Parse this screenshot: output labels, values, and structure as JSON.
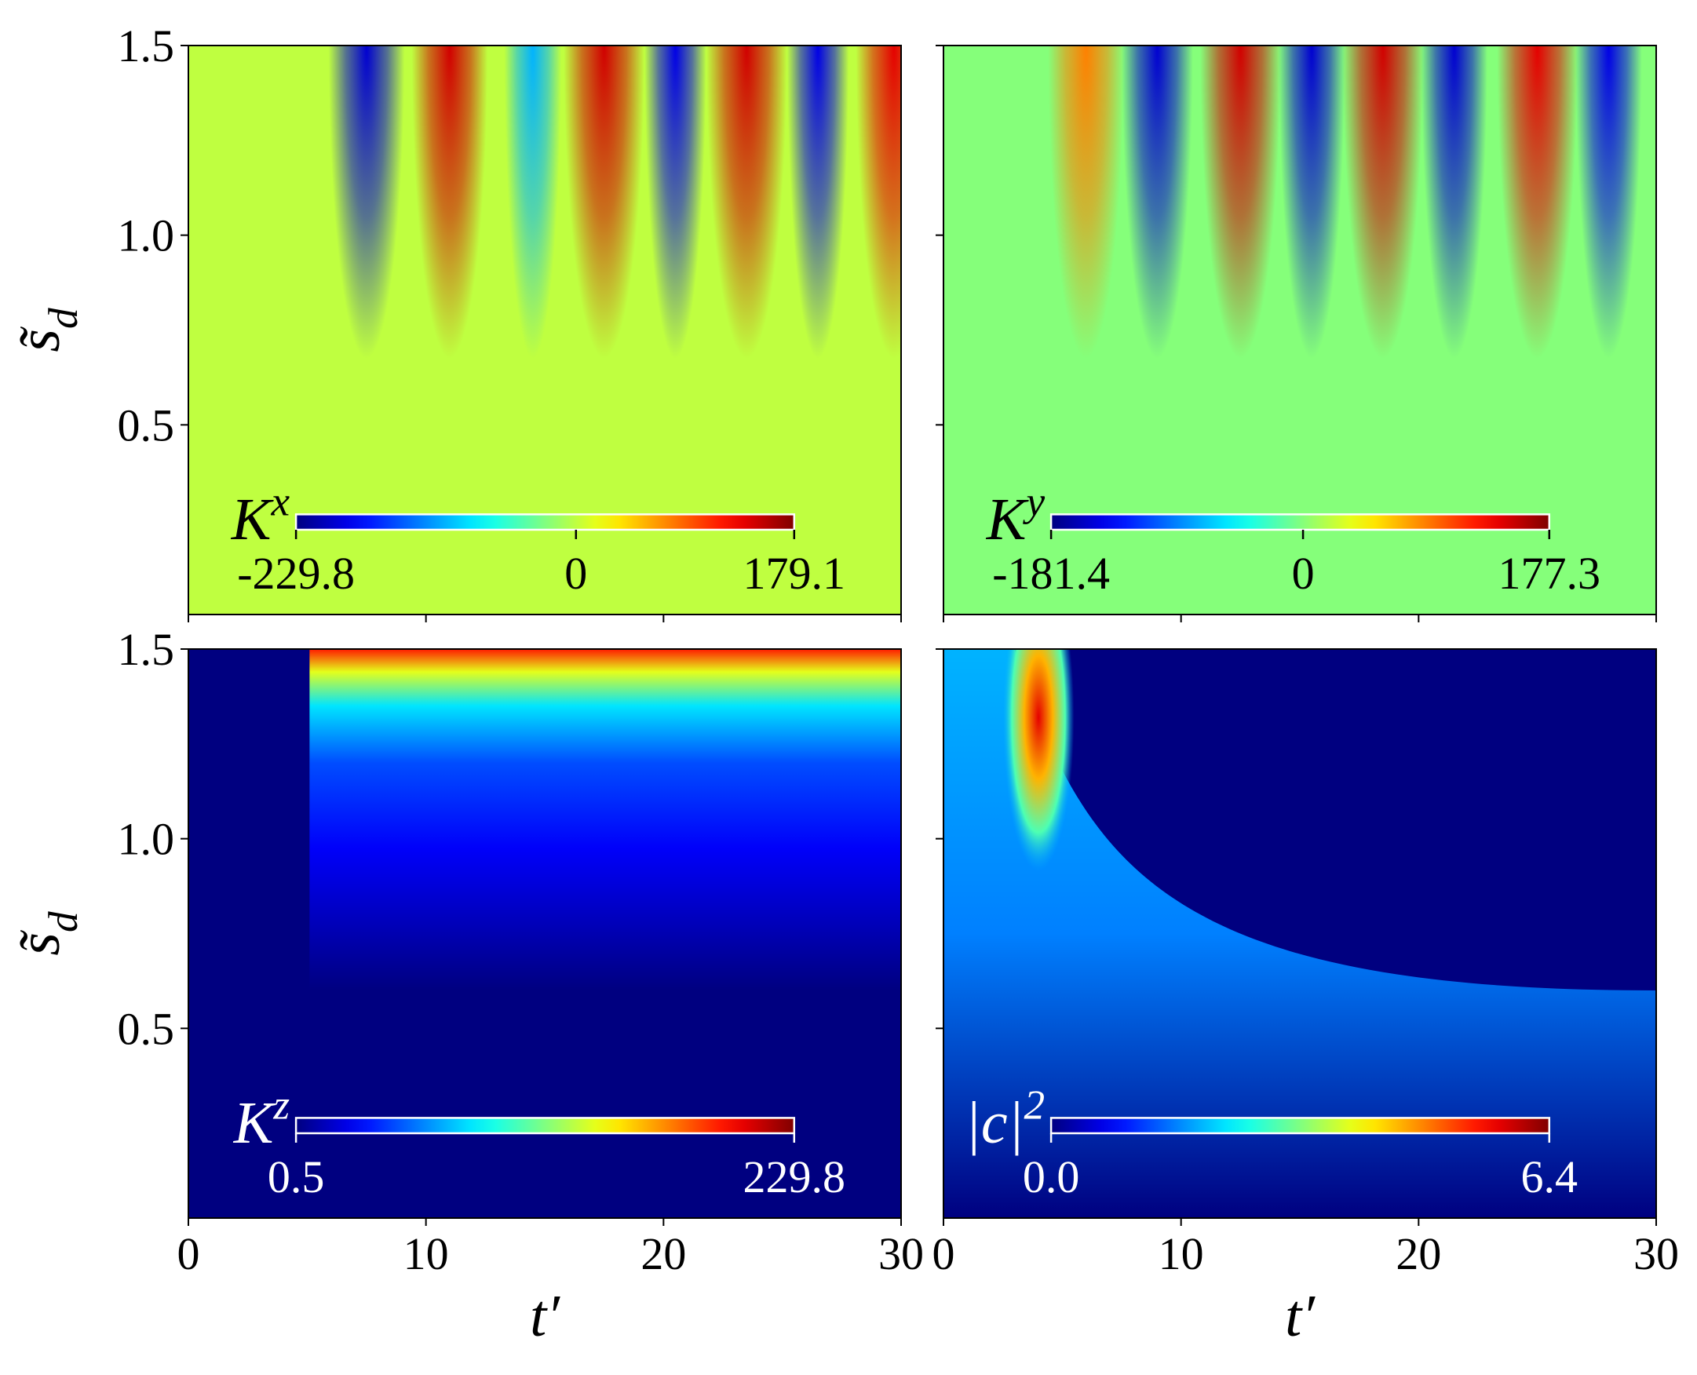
{
  "chart_data": [
    {
      "type": "heatmap",
      "colormap": "jet",
      "label": "K^x",
      "text_color": "#000000",
      "xlim": [
        0,
        30
      ],
      "xticks": [
        0,
        10,
        20,
        30
      ],
      "show_xticklabels": false,
      "ylim": [
        0,
        1.5
      ],
      "yticks": [
        0.5,
        {
          "value": 1,
          "label": "1.0"
        },
        1.5
      ],
      "show_yticklabels": true,
      "ylabel": "s̃_d",
      "clim": [
        -229.8,
        179.1
      ],
      "cticks": [
        -229.8,
        0,
        179.1
      ]
    },
    {
      "type": "heatmap",
      "colormap": "jet",
      "label": "K^y",
      "text_color": "#000000",
      "xlim": [
        0,
        30
      ],
      "xticks": [
        0,
        10,
        20,
        30
      ],
      "show_xticklabels": false,
      "ylim": [
        0,
        1.5
      ],
      "yticks": [
        0.5,
        {
          "value": 1,
          "label": "1.0"
        },
        1.5
      ],
      "show_yticklabels": false,
      "clim": [
        -181.4,
        177.3
      ],
      "cticks": [
        -181.4,
        0,
        177.3
      ]
    },
    {
      "type": "heatmap",
      "colormap": "jet",
      "label": "K^z",
      "text_color": "#ffffff",
      "xlim": [
        0,
        30
      ],
      "xticks": [
        0,
        10,
        20,
        30
      ],
      "show_xticklabels": true,
      "ylim": [
        0,
        1.5
      ],
      "yticks": [
        0.5,
        {
          "value": 1,
          "label": "1.0"
        },
        1.5
      ],
      "show_yticklabels": true,
      "xlabel": "t′",
      "ylabel": "s̃_d",
      "clim": [
        0.5,
        229.8
      ],
      "cticks": [
        0.5,
        229.8
      ]
    },
    {
      "type": "heatmap",
      "colormap": "jet",
      "label": "|c|^2",
      "text_color": "#ffffff",
      "xlim": [
        0,
        30
      ],
      "xticks": [
        0,
        10,
        20,
        30
      ],
      "show_xticklabels": true,
      "ylim": [
        0,
        1.5
      ],
      "yticks": [
        0.5,
        {
          "value": 1,
          "label": "1.0"
        },
        1.5
      ],
      "show_yticklabels": false,
      "xlabel": "t′",
      "clim": [
        0,
        6.4
      ],
      "cticks": [
        {
          "value": 0,
          "label": "0.0"
        },
        6.4
      ]
    }
  ]
}
